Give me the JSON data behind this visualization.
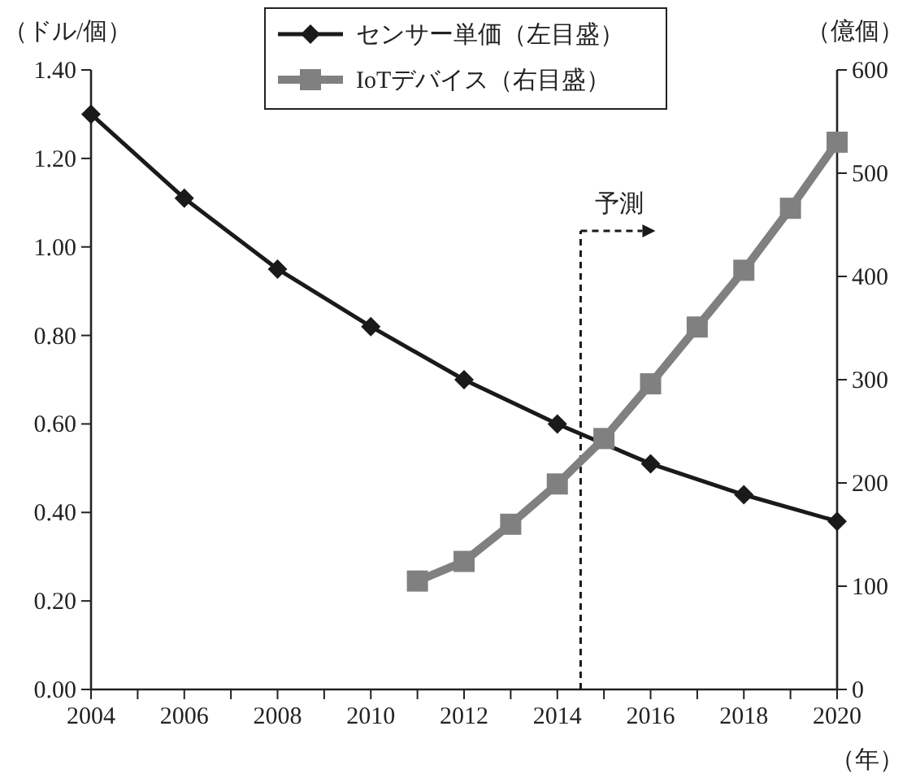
{
  "chart_data": {
    "type": "line",
    "x": [
      2004,
      2006,
      2008,
      2010,
      2012,
      2014,
      2016,
      2018,
      2020
    ],
    "series": [
      {
        "name": "センサー単価（左目盛）",
        "color": "#1a1a1a",
        "marker": "diamond",
        "values": [
          1.3,
          1.11,
          0.95,
          0.82,
          0.7,
          0.6,
          0.51,
          0.44,
          0.38
        ]
      },
      {
        "name": "IoTデバイス（右目盛）",
        "color": "#808080",
        "marker": "square",
        "axis": "y2",
        "x": [
          2011,
          2012,
          2013,
          2014,
          2015,
          2016,
          2017,
          2018,
          2019,
          2020
        ],
        "values": [
          105,
          124,
          160,
          199,
          243,
          296,
          351,
          406,
          466,
          530
        ]
      }
    ],
    "ylabel": "（ドル/個）",
    "y2label": "（億個）",
    "xlabel": "（年）",
    "xlim": [
      2004,
      2020
    ],
    "xticks": [
      2004,
      {
        "value": 2005,
        "label": null
      },
      2006,
      {
        "value": 2007,
        "label": null
      },
      2008,
      {
        "value": 2009,
        "label": null
      },
      2010,
      {
        "value": 2011,
        "label": null
      },
      2012,
      {
        "value": 2013,
        "label": null
      },
      2014,
      {
        "value": 2015,
        "label": null
      },
      2016,
      {
        "value": 2017,
        "label": null
      },
      2018,
      {
        "value": 2019,
        "label": null
      },
      2020
    ],
    "ylim": [
      0,
      1.4
    ],
    "yticks": [
      {
        "value": 0,
        "label": "0.00"
      },
      {
        "value": 0.2,
        "label": "0.20"
      },
      {
        "value": 0.4,
        "label": "0.40"
      },
      {
        "value": 0.6,
        "label": "0.60"
      },
      {
        "value": 0.8,
        "label": "0.80"
      },
      {
        "value": 1.0,
        "label": "1.00"
      },
      {
        "value": 1.2,
        "label": "1.20"
      },
      {
        "value": 1.4,
        "label": "1.40"
      }
    ],
    "y2lim": [
      0,
      600
    ],
    "y2ticks": [
      0,
      100,
      200,
      300,
      400,
      500,
      600
    ],
    "ref_lines": [
      {
        "axis": "x",
        "value": 2014.5,
        "label": "予測",
        "line_style": "dashed",
        "color": "#1a1a1a"
      }
    ],
    "legend": "top",
    "grid": false
  }
}
